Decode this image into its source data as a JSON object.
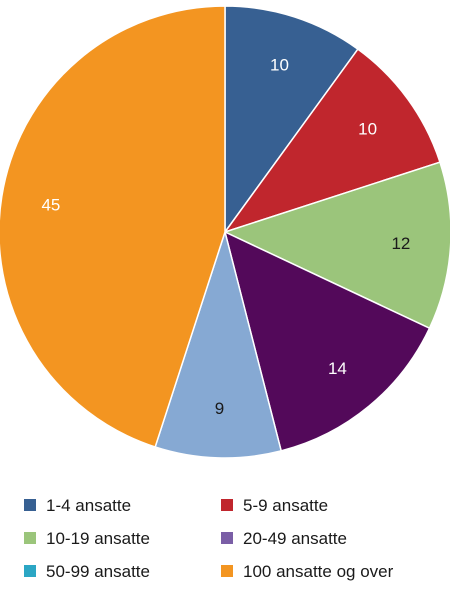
{
  "chart_data": {
    "type": "pie",
    "categories": [
      "1-4 ansatte",
      "5-9 ansatte",
      "10-19 ansatte",
      "20-49 ansatte",
      "50-99 ansatte",
      "100 ansatte og over"
    ],
    "values": [
      10,
      10,
      12,
      14,
      9,
      45
    ],
    "data_labels": [
      "10",
      "10",
      "12",
      "14",
      "9",
      "45"
    ],
    "colors": [
      "#376092",
      "#c0262d",
      "#9bc57b",
      "#53095a",
      "#86a9d3",
      "#f39521"
    ],
    "legend_colors": [
      "#376092",
      "#c0262d",
      "#9bc57b",
      "#7a5ea6",
      "#2ba6c4",
      "#f39521"
    ],
    "label_dark": [
      false,
      false,
      true,
      false,
      true,
      false
    ],
    "start_angle": "12 o'clock",
    "direction": "clockwise",
    "legend_position": "bottom"
  }
}
